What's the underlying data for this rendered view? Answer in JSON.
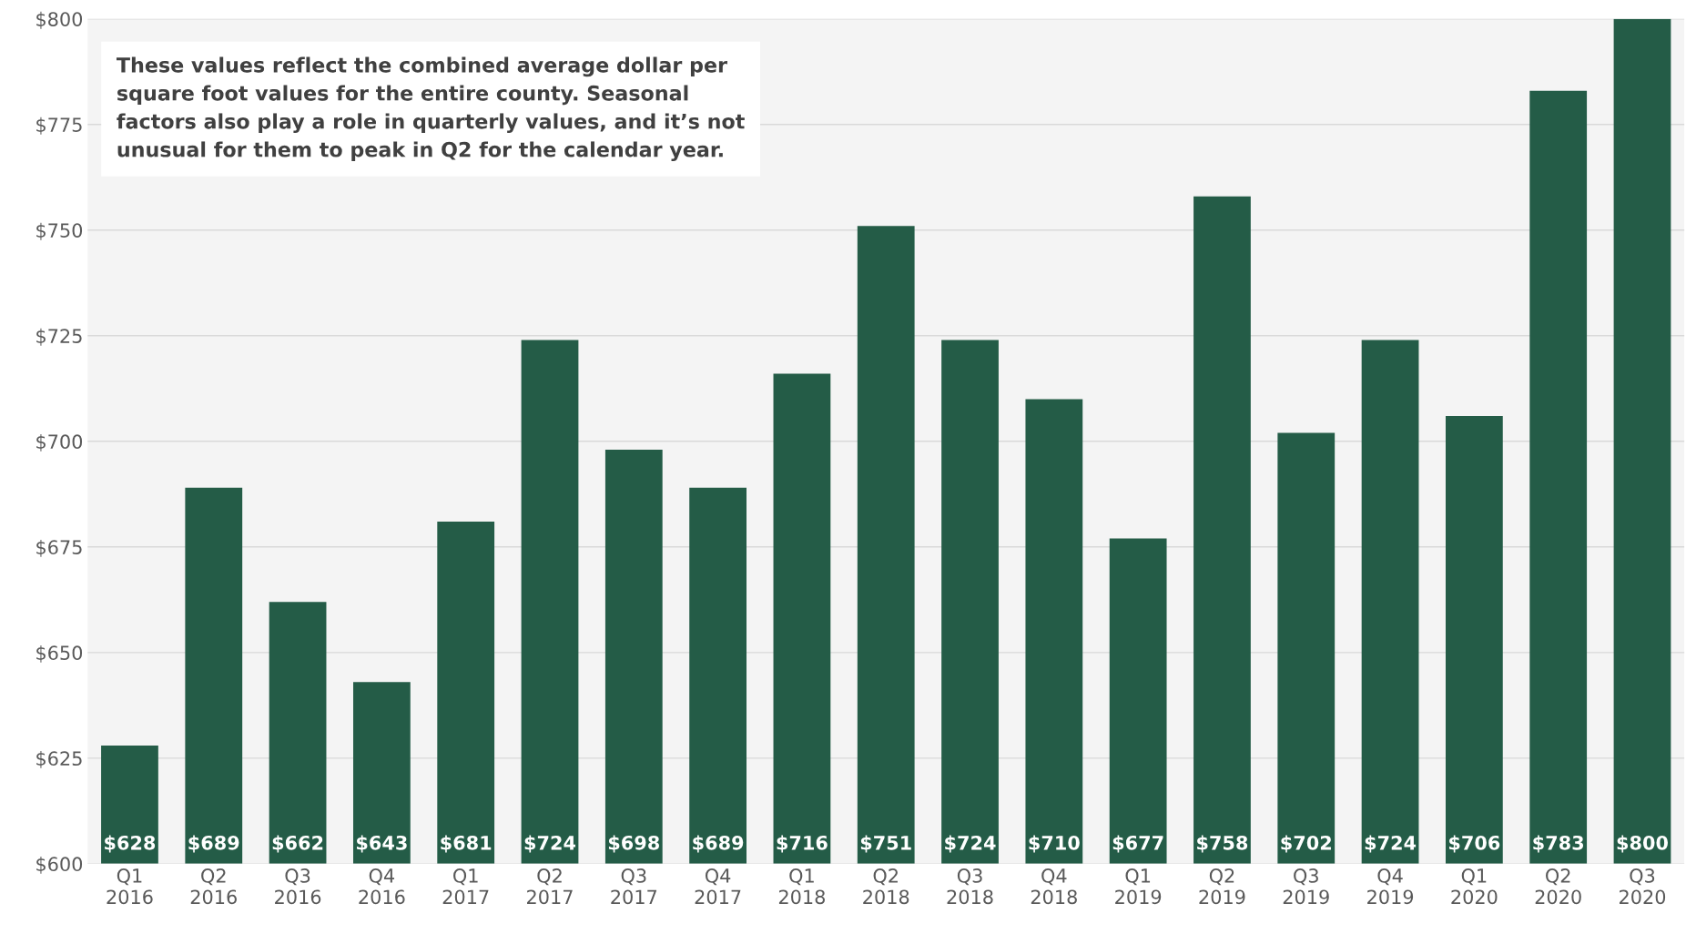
{
  "chart_data": {
    "type": "bar",
    "categories": [
      "Q1\n2016",
      "Q2\n2016",
      "Q3\n2016",
      "Q4\n2016",
      "Q1\n2017",
      "Q2\n2017",
      "Q3\n2017",
      "Q4\n2017",
      "Q1\n2018",
      "Q2\n2018",
      "Q3\n2018",
      "Q4\n2018",
      "Q1\n2019",
      "Q2\n2019",
      "Q3\n2019",
      "Q4\n2019",
      "Q1\n2020",
      "Q2\n2020",
      "Q3\n2020"
    ],
    "values": [
      628,
      689,
      662,
      643,
      681,
      724,
      698,
      689,
      716,
      751,
      724,
      710,
      677,
      758,
      702,
      724,
      706,
      783,
      800
    ],
    "value_labels": [
      "$628",
      "$689",
      "$662",
      "$643",
      "$681",
      "$724",
      "$698",
      "$689",
      "$716",
      "$751",
      "$724",
      "$710",
      "$677",
      "$758",
      "$702",
      "$724",
      "$706",
      "$783",
      "$800"
    ],
    "color": "#245c47",
    "ylim": [
      600,
      800
    ],
    "yticks": [
      {
        "value": 600,
        "label": "$600"
      },
      {
        "value": 625,
        "label": "$625"
      },
      {
        "value": 650,
        "label": "$650"
      },
      {
        "value": 675,
        "label": "$675"
      },
      {
        "value": 700,
        "label": "$700"
      },
      {
        "value": 725,
        "label": "$725"
      },
      {
        "value": 750,
        "label": "$750"
      },
      {
        "value": 775,
        "label": "$775"
      },
      {
        "value": 800,
        "label": "$800"
      }
    ],
    "grid": "y",
    "annotations": [
      "These values reflect the combined average dollar per\nsquare foot values for the entire county. Seasonal\nfactors also play a role in quarterly values, and it’s not\nunusual for them to peak in Q2 for the calendar year."
    ]
  }
}
